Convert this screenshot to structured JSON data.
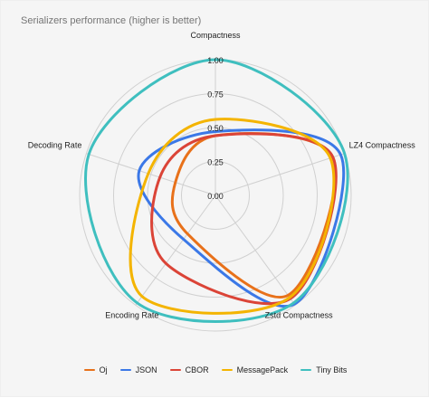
{
  "chart_data": {
    "type": "radar",
    "title": "Serializers performance (higher is better)",
    "axes": [
      "Compactness",
      "LZ4 Compactness",
      "Zstd Compactness",
      "Encoding Rate",
      "Decoding Rate"
    ],
    "ticks": [
      "0.00",
      "0.25",
      "0.50",
      "0.75",
      "1.00"
    ],
    "range": [
      0,
      1
    ],
    "grid": true,
    "legend_position": "bottom",
    "series": [
      {
        "name": "Oj",
        "color": "#e8711a",
        "values": [
          0.44,
          0.91,
          0.91,
          0.35,
          0.31
        ]
      },
      {
        "name": "JSON",
        "color": "#3b78e7",
        "values": [
          0.47,
          0.97,
          0.99,
          0.4,
          0.59
        ]
      },
      {
        "name": "CBOR",
        "color": "#db4437",
        "values": [
          0.44,
          0.91,
          0.94,
          0.62,
          0.43
        ]
      },
      {
        "name": "MessagePack",
        "color": "#f4b400",
        "values": [
          0.56,
          0.89,
          0.93,
          0.92,
          0.52
        ]
      },
      {
        "name": "Tiny Bits",
        "color": "#3fbfbf",
        "values": [
          1.0,
          1.0,
          0.98,
          0.98,
          0.98
        ]
      }
    ]
  }
}
